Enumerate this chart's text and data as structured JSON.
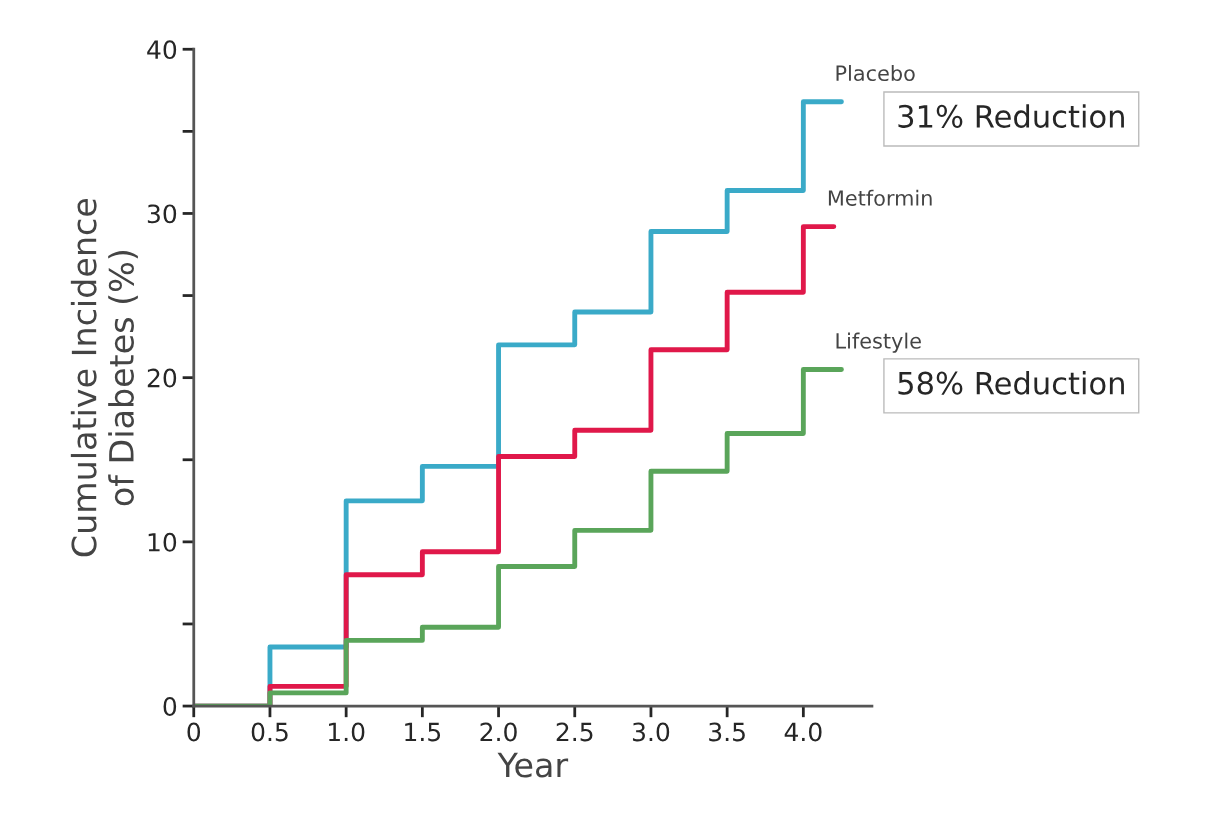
{
  "chart_data": {
    "type": "step",
    "xlabel": "Year",
    "ylabel": "Cumulative Incidence\nof Diabetes (%)",
    "xlim": [
      0,
      4.45
    ],
    "ylim": [
      0,
      40
    ],
    "xticks": [
      0,
      {
        "value": 0.5,
        "label": "0.5"
      },
      {
        "value": 1,
        "label": "1.0"
      },
      {
        "value": 1.5,
        "label": "1.5"
      },
      {
        "value": 2,
        "label": "2.0"
      },
      {
        "value": 2.5,
        "label": "2.5"
      },
      {
        "value": 3,
        "label": "3.0"
      },
      {
        "value": 3.5,
        "label": "3.5"
      },
      {
        "value": 4,
        "label": "4.0"
      }
    ],
    "yticks": [
      0,
      {
        "value": 5,
        "label": null
      },
      10,
      {
        "value": 15,
        "label": null
      },
      20,
      {
        "value": 25,
        "label": null
      },
      30,
      {
        "value": 35,
        "label": null
      },
      40
    ],
    "grid": false,
    "legend": false,
    "marker": "none",
    "line_style": "solid",
    "series": [
      {
        "name": "Placebo",
        "color": "#3aaac8",
        "x": [
          0,
          0.5,
          1,
          1.5,
          2,
          2.5,
          3,
          3.5,
          4,
          4.25
        ],
        "values": [
          0,
          3.6,
          12.5,
          14.6,
          22,
          24,
          28.9,
          31.4,
          36.8,
          36.8
        ]
      },
      {
        "name": "Metformin",
        "color": "#e0184a",
        "x": [
          0,
          0.5,
          1,
          1.5,
          2,
          2.5,
          3,
          3.5,
          4,
          4.2
        ],
        "values": [
          0,
          1.2,
          8,
          9.4,
          15.2,
          16.8,
          21.7,
          25.2,
          29.2,
          29.2
        ]
      },
      {
        "name": "Lifestyle",
        "color": "#5aa55a",
        "x": [
          0,
          0.5,
          1,
          1.5,
          2,
          2.5,
          3,
          3.5,
          4,
          4.25
        ],
        "values": [
          0,
          0.8,
          4,
          4.8,
          8.5,
          10.7,
          14.3,
          16.6,
          20.5,
          20.5
        ]
      }
    ],
    "annotations": [
      "31% Reduction",
      "58% Reduction"
    ]
  }
}
